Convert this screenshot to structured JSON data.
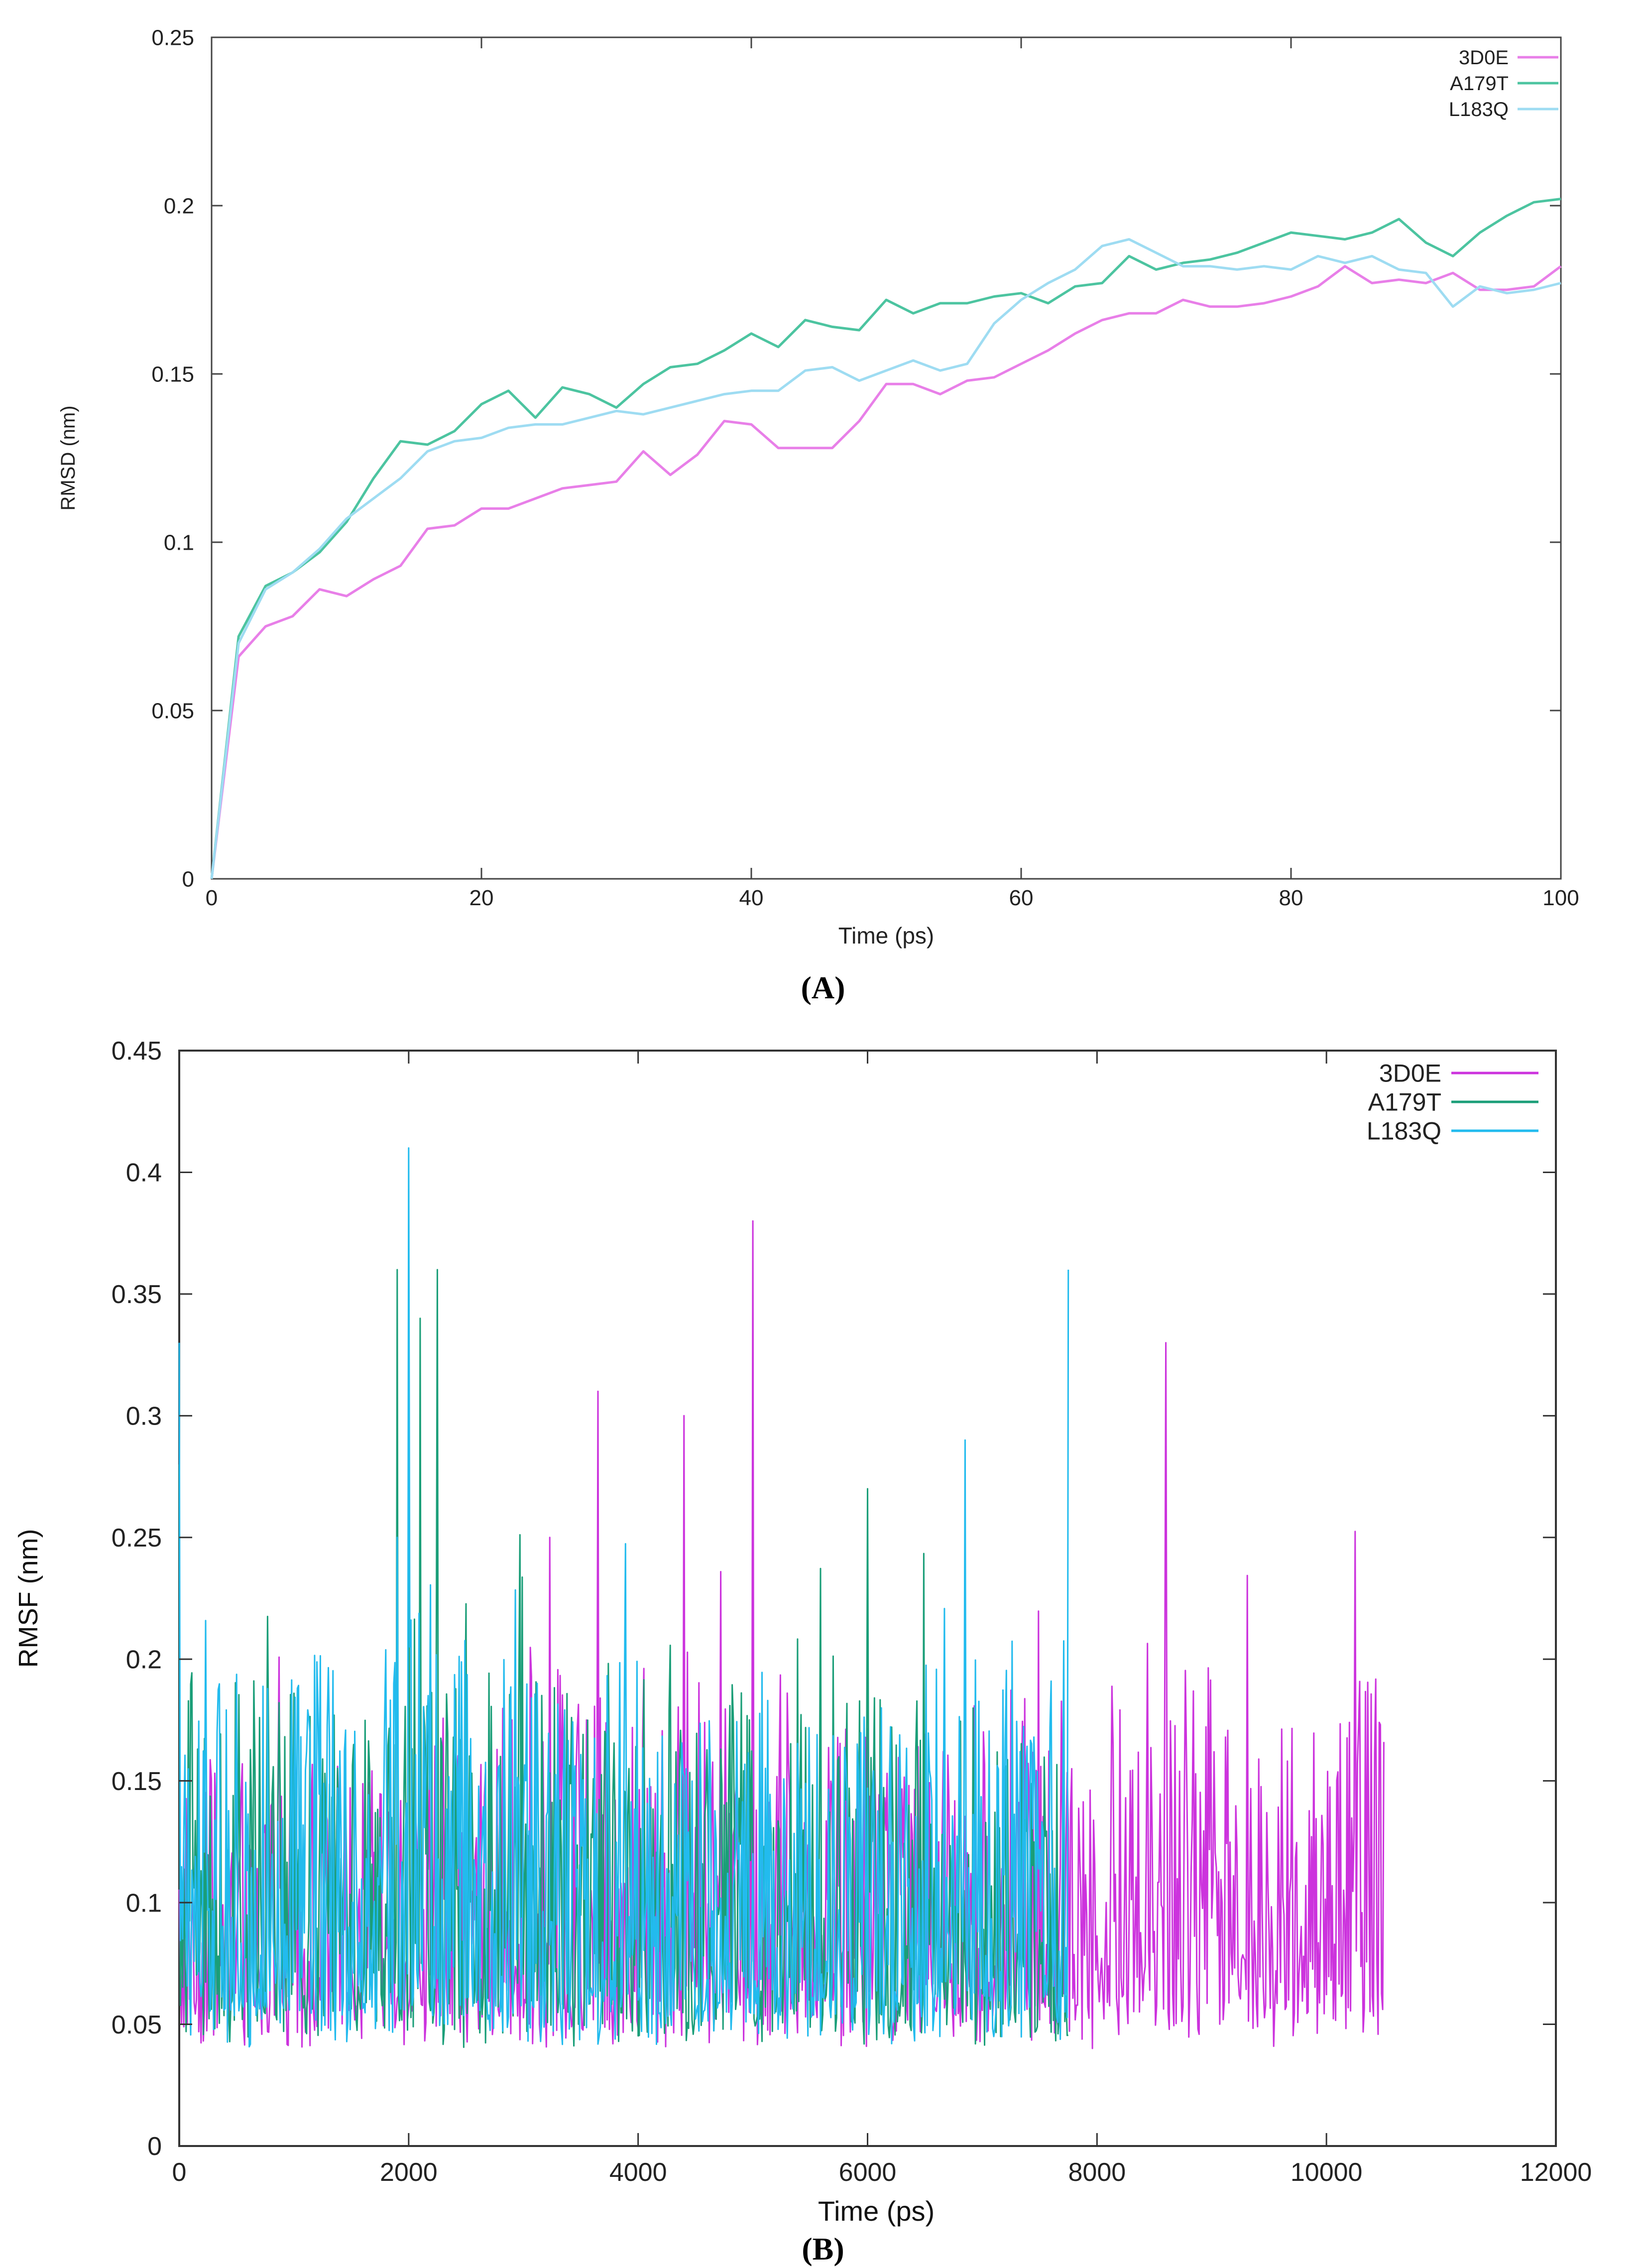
{
  "chart_data": [
    {
      "id": "A",
      "type": "line",
      "panel_label": "A",
      "title": "",
      "xlabel": "Time (ps)",
      "ylabel": "RMSD (nm)",
      "xlim": [
        0,
        100
      ],
      "ylim": [
        0,
        0.25
      ],
      "x_ticks": [
        0,
        20,
        40,
        60,
        80,
        100
      ],
      "y_ticks": [
        0,
        0.05,
        0.1,
        0.15,
        0.2,
        0.25
      ],
      "y_tick_labels": [
        "0",
        "0.05",
        "0.1",
        "0.15",
        "0.2",
        "0.25"
      ],
      "grid": false,
      "legend_position": "top-right",
      "series": [
        {
          "name": "3D0E",
          "color": "#e87fe8",
          "x": [
            0,
            2,
            4,
            6,
            8,
            10,
            12,
            14,
            16,
            18,
            20,
            22,
            24,
            26,
            28,
            30,
            32,
            34,
            36,
            38,
            40,
            42,
            44,
            46,
            48,
            50,
            52,
            54,
            56,
            58,
            60,
            62,
            64,
            66,
            68,
            70,
            72,
            74,
            76,
            78,
            80,
            82,
            84,
            86,
            88,
            90,
            92,
            94,
            96,
            98,
            100
          ],
          "values": [
            0.0,
            0.066,
            0.075,
            0.078,
            0.086,
            0.084,
            0.089,
            0.093,
            0.104,
            0.105,
            0.11,
            0.11,
            0.113,
            0.116,
            0.117,
            0.118,
            0.127,
            0.12,
            0.126,
            0.136,
            0.135,
            0.128,
            0.128,
            0.128,
            0.136,
            0.147,
            0.147,
            0.144,
            0.148,
            0.149,
            0.153,
            0.157,
            0.162,
            0.166,
            0.168,
            0.168,
            0.172,
            0.17,
            0.17,
            0.171,
            0.173,
            0.176,
            0.182,
            0.177,
            0.178,
            0.177,
            0.18,
            0.175,
            0.175,
            0.176,
            0.182
          ]
        },
        {
          "name": "A179T",
          "color": "#4cc4a0",
          "x": [
            0,
            2,
            4,
            6,
            8,
            10,
            12,
            14,
            16,
            18,
            20,
            22,
            24,
            26,
            28,
            30,
            32,
            34,
            36,
            38,
            40,
            42,
            44,
            46,
            48,
            50,
            52,
            54,
            56,
            58,
            60,
            62,
            64,
            66,
            68,
            70,
            72,
            74,
            76,
            78,
            80,
            82,
            84,
            86,
            88,
            90,
            92,
            94,
            96,
            98,
            100
          ],
          "values": [
            0.0,
            0.072,
            0.087,
            0.091,
            0.097,
            0.106,
            0.119,
            0.13,
            0.129,
            0.133,
            0.141,
            0.145,
            0.137,
            0.146,
            0.144,
            0.14,
            0.147,
            0.152,
            0.153,
            0.157,
            0.162,
            0.158,
            0.166,
            0.164,
            0.163,
            0.172,
            0.168,
            0.171,
            0.171,
            0.173,
            0.174,
            0.171,
            0.176,
            0.177,
            0.185,
            0.181,
            0.183,
            0.184,
            0.186,
            0.189,
            0.192,
            0.191,
            0.19,
            0.192,
            0.196,
            0.189,
            0.185,
            0.192,
            0.197,
            0.201,
            0.202
          ]
        },
        {
          "name": "L183Q",
          "color": "#9edcf2",
          "x": [
            0,
            2,
            4,
            6,
            8,
            10,
            12,
            14,
            16,
            18,
            20,
            22,
            24,
            26,
            28,
            30,
            32,
            34,
            36,
            38,
            40,
            42,
            44,
            46,
            48,
            50,
            52,
            54,
            56,
            58,
            60,
            62,
            64,
            66,
            68,
            70,
            72,
            74,
            76,
            78,
            80,
            82,
            84,
            86,
            88,
            90,
            92,
            94,
            96,
            98,
            100
          ],
          "values": [
            0.0,
            0.07,
            0.086,
            0.091,
            0.098,
            0.107,
            0.113,
            0.119,
            0.127,
            0.13,
            0.131,
            0.134,
            0.135,
            0.135,
            0.137,
            0.139,
            0.138,
            0.14,
            0.142,
            0.144,
            0.145,
            0.145,
            0.151,
            0.152,
            0.148,
            0.151,
            0.154,
            0.151,
            0.153,
            0.165,
            0.172,
            0.177,
            0.181,
            0.188,
            0.19,
            0.186,
            0.182,
            0.182,
            0.181,
            0.182,
            0.181,
            0.185,
            0.183,
            0.185,
            0.181,
            0.18,
            0.17,
            0.176,
            0.174,
            0.175,
            0.177
          ]
        }
      ]
    },
    {
      "id": "B",
      "type": "line",
      "panel_label": "B",
      "title": "",
      "xlabel": "Time (ps)",
      "ylabel": "RMSF (nm)",
      "xlim": [
        0,
        12000
      ],
      "ylim": [
        0,
        0.45
      ],
      "x_ticks": [
        0,
        2000,
        4000,
        6000,
        8000,
        10000,
        12000
      ],
      "y_ticks": [
        0,
        0.05,
        0.1,
        0.15,
        0.2,
        0.25,
        0.3,
        0.35,
        0.4,
        0.45
      ],
      "y_tick_labels": [
        "0",
        "0.05",
        "0.1",
        "0.15",
        "0.2",
        "0.25",
        "0.3",
        "0.35",
        "0.4",
        "0.45"
      ],
      "grid": false,
      "legend_position": "top-right",
      "series": [
        {
          "name": "3D0E",
          "color": "#cc33dd",
          "x": [
            0,
            250,
            500,
            750,
            1000,
            1250,
            1500,
            1750,
            2000,
            2250,
            2500,
            2750,
            3000,
            3250,
            3500,
            3650,
            3750,
            4000,
            4250,
            4400,
            4500,
            4750,
            5000,
            5250,
            5500,
            5750,
            6000,
            6250,
            6500,
            6750,
            7000,
            7250,
            7500,
            7750,
            8000,
            8250,
            8500,
            8600,
            8750,
            9000,
            9250,
            9500,
            9750,
            10000,
            10250,
            10500
          ],
          "values": [
            0.1,
            0.07,
            0.06,
            0.07,
            0.06,
            0.07,
            0.06,
            0.06,
            0.07,
            0.06,
            0.07,
            0.08,
            0.09,
            0.1,
            0.12,
            0.31,
            0.09,
            0.11,
            0.1,
            0.3,
            0.1,
            0.09,
            0.38,
            0.11,
            0.09,
            0.1,
            0.08,
            0.1,
            0.09,
            0.08,
            0.09,
            0.08,
            0.09,
            0.08,
            0.11,
            0.09,
            0.12,
            0.33,
            0.1,
            0.11,
            0.09,
            0.1,
            0.11,
            0.1,
            0.1,
            0.1
          ]
        },
        {
          "name": "A179T",
          "color": "#1a9e78",
          "x": [
            0,
            250,
            500,
            750,
            1000,
            1250,
            1500,
            1750,
            1900,
            2000,
            2100,
            2250,
            2500,
            2750,
            3000,
            3250,
            3500,
            3750,
            4000,
            4250,
            4500,
            4750,
            5000,
            5250,
            5500,
            5750,
            6000,
            6250,
            6500,
            6750,
            7000,
            7250,
            7500,
            7750
          ],
          "values": [
            0.28,
            0.1,
            0.09,
            0.11,
            0.1,
            0.12,
            0.09,
            0.1,
            0.36,
            0.33,
            0.34,
            0.36,
            0.12,
            0.1,
            0.11,
            0.1,
            0.09,
            0.08,
            0.1,
            0.09,
            0.08,
            0.09,
            0.1,
            0.09,
            0.08,
            0.09,
            0.27,
            0.09,
            0.08,
            0.09,
            0.08,
            0.07,
            0.08,
            0.07
          ]
        },
        {
          "name": "L183Q",
          "color": "#22bbee",
          "x": [
            0,
            250,
            500,
            750,
            1000,
            1250,
            1500,
            1750,
            1900,
            2000,
            2100,
            2250,
            2500,
            2750,
            3000,
            3250,
            3500,
            3750,
            4000,
            4250,
            4500,
            4750,
            5000,
            5250,
            5500,
            5750,
            6000,
            6250,
            6500,
            6750,
            6850,
            7000,
            7250,
            7500,
            7750
          ],
          "values": [
            0.33,
            0.11,
            0.1,
            0.12,
            0.1,
            0.11,
            0.1,
            0.11,
            0.25,
            0.41,
            0.22,
            0.2,
            0.12,
            0.1,
            0.1,
            0.11,
            0.09,
            0.1,
            0.1,
            0.09,
            0.1,
            0.09,
            0.1,
            0.09,
            0.08,
            0.1,
            0.09,
            0.1,
            0.09,
            0.1,
            0.29,
            0.1,
            0.12,
            0.11,
            0.36
          ]
        }
      ]
    }
  ]
}
